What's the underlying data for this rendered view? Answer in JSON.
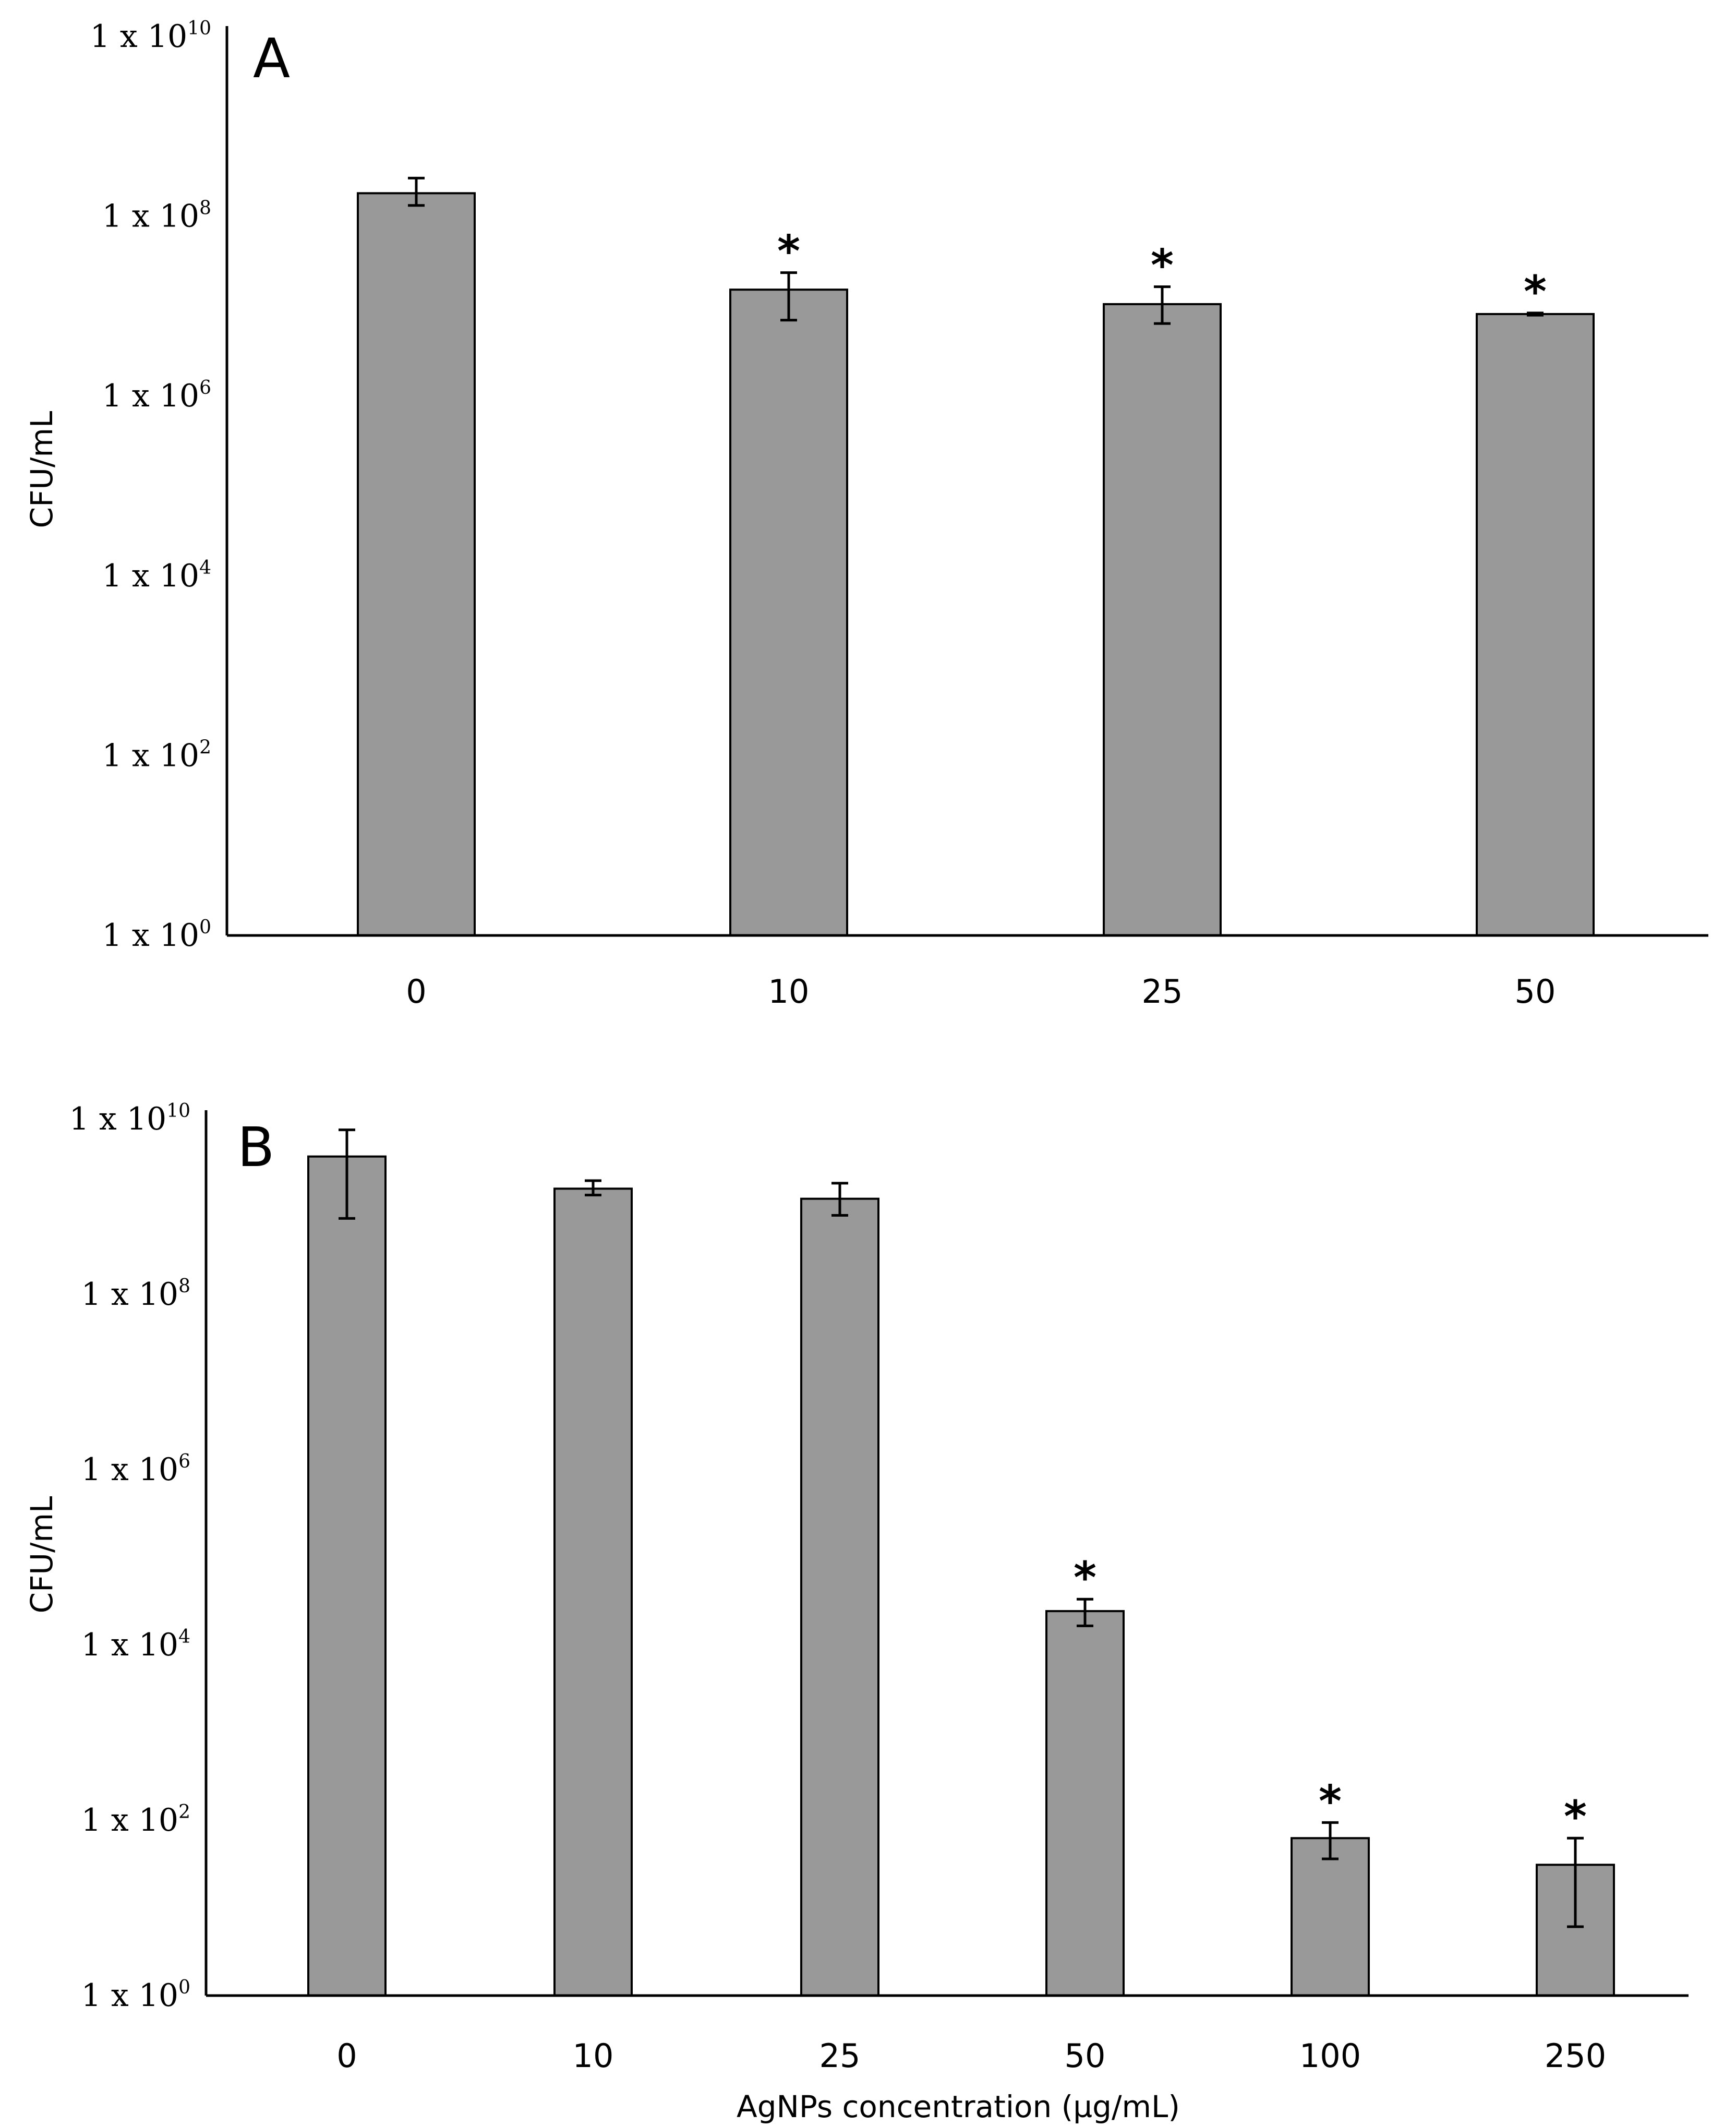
{
  "chart_data": [
    {
      "type": "bar",
      "panel": "A",
      "scale": "log",
      "ylabel": "CFU/mL",
      "xlabel": "",
      "ylim": [
        1,
        10000000000
      ],
      "ytick_base": "1 x 10",
      "yticks_exp": [
        "0",
        "2",
        "4",
        "6",
        "8",
        "10"
      ],
      "categories": [
        "0",
        "10",
        "25",
        "50"
      ],
      "values": [
        150000000,
        13000000,
        9000000,
        7000000
      ],
      "error_low": [
        110000000,
        6000000,
        5500000,
        6800000
      ],
      "error_high": [
        220000000,
        20000000,
        14000000,
        7200000
      ],
      "significant": [
        false,
        true,
        true,
        true
      ],
      "marker": "*",
      "bar_color": "#999999"
    },
    {
      "type": "bar",
      "panel": "B",
      "scale": "log",
      "ylabel": "CFU/mL",
      "xlabel": "AgNPs concentration (µg/mL)",
      "ylim": [
        1,
        10000000000
      ],
      "ytick_base": "1 x 10",
      "yticks_exp": [
        "0",
        "2",
        "4",
        "6",
        "8",
        "10"
      ],
      "categories": [
        "0",
        "10",
        "25",
        "50",
        "100",
        "250"
      ],
      "values": [
        3000000000,
        1300000000,
        1000000000,
        22000,
        60,
        30
      ],
      "error_low": [
        600000000,
        1100000000,
        650000000,
        15000,
        35,
        6
      ],
      "error_high": [
        6000000000,
        1600000000,
        1500000000,
        30000,
        90,
        60
      ],
      "significant": [
        false,
        false,
        false,
        true,
        true,
        true
      ],
      "marker": "*",
      "bar_color": "#999999"
    }
  ]
}
